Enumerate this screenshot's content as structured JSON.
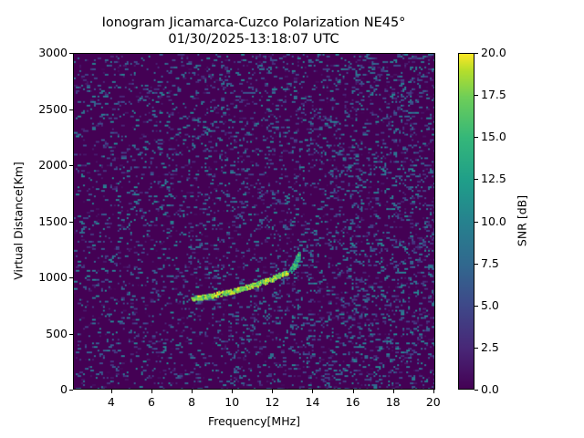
{
  "chart_data": {
    "type": "heatmap",
    "title": "Ionogram Jicamarca-Cuzco Polarization NE45°",
    "subtitle": "01/30/2025-13:18:07 UTC",
    "xlabel": "Frequency[MHz]",
    "ylabel": "Virtual Distance[Km]",
    "colorbar_label": "SNR [dB]",
    "xlim": [
      2.1,
      20.1
    ],
    "ylim": [
      0,
      3000
    ],
    "clim": [
      0.0,
      20.0
    ],
    "colormap": "viridis",
    "x_ticks": [
      "4",
      "6",
      "8",
      "10",
      "12",
      "14",
      "16",
      "18",
      "20"
    ],
    "y_ticks": [
      "0",
      "500",
      "1000",
      "1500",
      "2000",
      "2500",
      "3000"
    ],
    "colorbar_ticks": [
      "0.0",
      "2.5",
      "5.0",
      "7.5",
      "10.0",
      "12.5",
      "15.0",
      "17.5",
      "20.0"
    ],
    "grid": false,
    "trace": {
      "description": "Ionospheric echo trace, high SNR (~15-20 dB) curving upward",
      "points": [
        {
          "freq": 8.0,
          "dist": 810
        },
        {
          "freq": 8.5,
          "dist": 825
        },
        {
          "freq": 9.0,
          "dist": 840
        },
        {
          "freq": 9.5,
          "dist": 860
        },
        {
          "freq": 10.0,
          "dist": 880
        },
        {
          "freq": 10.5,
          "dist": 905
        },
        {
          "freq": 11.0,
          "dist": 930
        },
        {
          "freq": 11.5,
          "dist": 960
        },
        {
          "freq": 12.0,
          "dist": 990
        },
        {
          "freq": 12.5,
          "dist": 1030
        },
        {
          "freq": 13.0,
          "dist": 1080
        },
        {
          "freq": 13.2,
          "dist": 1150
        },
        {
          "freq": 13.3,
          "dist": 1220
        }
      ]
    },
    "background_noise_snr": [
      0,
      8
    ]
  }
}
